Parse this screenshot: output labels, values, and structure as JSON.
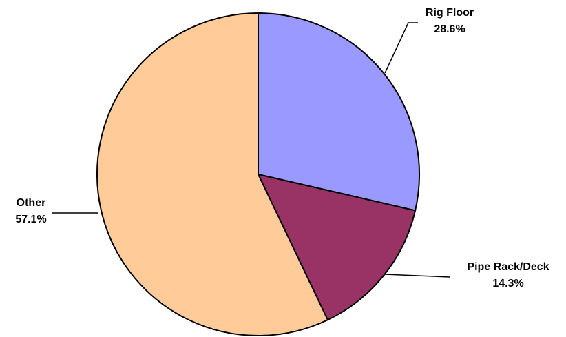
{
  "chart_data": {
    "type": "pie",
    "slices": [
      {
        "label": "Rig Floor",
        "value": 28.6,
        "value_label": "28.6%",
        "color": "#9999FF"
      },
      {
        "label": "Pipe Rack/Deck",
        "value": 14.3,
        "value_label": "14.3%",
        "color": "#993366"
      },
      {
        "label": "Other",
        "value": 57.1,
        "value_label": "57.1%",
        "color": "#FFCC99"
      }
    ],
    "start_angle_deg": 0,
    "direction": "clockwise",
    "slice_border_color": "#000000",
    "leader_line_color": "#000000"
  }
}
